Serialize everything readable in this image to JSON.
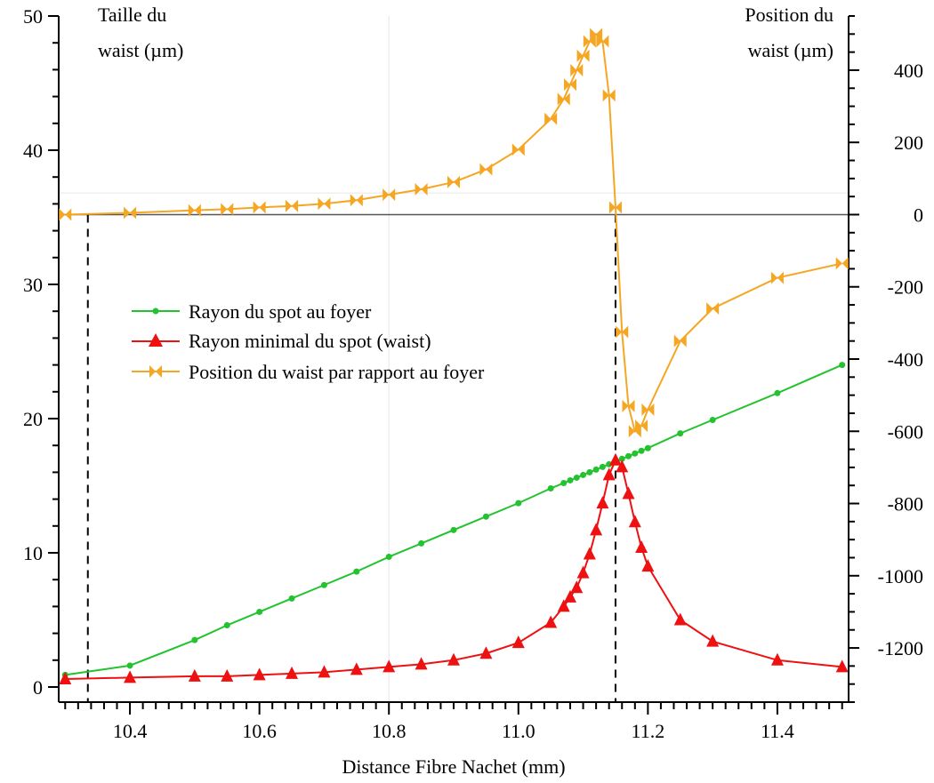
{
  "chart_data": {
    "type": "line",
    "xlabel": "Distance Fibre Nachet (mm)",
    "ylabel_left": [
      "Taille du",
      "waist (µm)"
    ],
    "ylabel_right": [
      "Position du",
      "waist (µm)"
    ],
    "xlim": [
      10.29,
      11.51
    ],
    "ylim_left": [
      0,
      50
    ],
    "ylim_right": [
      -1350,
      550
    ],
    "xticks": [
      10.4,
      10.6,
      10.8,
      11.0,
      11.2,
      11.4
    ],
    "xtick_labels": [
      "10.4",
      "10.6",
      "10.8",
      "11.0",
      "11.2",
      "11.4"
    ],
    "yticks_left": [
      0,
      10,
      20,
      30,
      40,
      50
    ],
    "ytick_labels_left": [
      "0",
      "10",
      "20",
      "30",
      "40",
      "50"
    ],
    "yticks_right": [
      -1200,
      -1000,
      -800,
      -600,
      -400,
      -200,
      0,
      200,
      400
    ],
    "ytick_labels_right": [
      "-1200",
      "-1000",
      "-800",
      "-600",
      "-400",
      "-200",
      "0",
      "200",
      "400"
    ],
    "grid": false,
    "zero_line_right": 0,
    "dashed_verticals": [
      10.335,
      11.15
    ],
    "legend_position": "center-left",
    "series": [
      {
        "name": "Rayon du spot au  foyer",
        "axis": "left",
        "color": "#22c32e",
        "marker": "dot",
        "x": [
          10.3,
          10.4,
          10.5,
          10.55,
          10.6,
          10.65,
          10.7,
          10.75,
          10.8,
          10.85,
          10.9,
          10.95,
          11.0,
          11.05,
          11.07,
          11.08,
          11.09,
          11.1,
          11.11,
          11.12,
          11.13,
          11.14,
          11.15,
          11.16,
          11.17,
          11.18,
          11.19,
          11.2,
          11.25,
          11.3,
          11.4,
          11.5
        ],
        "values": [
          0.9,
          1.6,
          3.5,
          4.6,
          5.6,
          6.6,
          7.6,
          8.6,
          9.7,
          10.7,
          11.7,
          12.7,
          13.7,
          14.8,
          15.2,
          15.4,
          15.6,
          15.8,
          16.0,
          16.2,
          16.4,
          16.6,
          16.8,
          17.0,
          17.2,
          17.4,
          17.6,
          17.8,
          18.9,
          19.9,
          21.9,
          24.0
        ]
      },
      {
        "name": "Rayon minimal du spot (waist)",
        "axis": "left",
        "color": "#ee1111",
        "marker": "triangle",
        "x": [
          10.3,
          10.4,
          10.5,
          10.55,
          10.6,
          10.65,
          10.7,
          10.75,
          10.8,
          10.85,
          10.9,
          10.95,
          11.0,
          11.05,
          11.07,
          11.08,
          11.09,
          11.1,
          11.11,
          11.12,
          11.13,
          11.14,
          11.15,
          11.16,
          11.17,
          11.18,
          11.19,
          11.2,
          11.25,
          11.3,
          11.4,
          11.5
        ],
        "values": [
          0.6,
          0.7,
          0.8,
          0.8,
          0.9,
          1.0,
          1.1,
          1.3,
          1.5,
          1.7,
          2.0,
          2.5,
          3.3,
          4.8,
          6.0,
          6.7,
          7.4,
          8.5,
          9.9,
          11.7,
          13.7,
          15.8,
          16.9,
          16.4,
          14.4,
          12.3,
          10.4,
          9.0,
          5.0,
          3.4,
          2.0,
          1.5
        ]
      },
      {
        "name": "Position du waist par rapport au foyer",
        "axis": "right",
        "color": "#f5a623",
        "marker": "bowtie",
        "x": [
          10.3,
          10.4,
          10.5,
          10.55,
          10.6,
          10.65,
          10.7,
          10.75,
          10.8,
          10.85,
          10.9,
          10.95,
          11.0,
          11.05,
          11.07,
          11.08,
          11.09,
          11.1,
          11.11,
          11.12,
          11.13,
          11.14,
          11.15,
          11.16,
          11.17,
          11.18,
          11.19,
          11.2,
          11.25,
          11.3,
          11.4,
          11.5
        ],
        "values": [
          0,
          5,
          12,
          15,
          20,
          24,
          30,
          40,
          55,
          70,
          90,
          125,
          180,
          265,
          320,
          360,
          400,
          440,
          480,
          500,
          480,
          330,
          20,
          -325,
          -530,
          -600,
          -585,
          -540,
          -350,
          -260,
          -175,
          -135
        ]
      }
    ]
  }
}
